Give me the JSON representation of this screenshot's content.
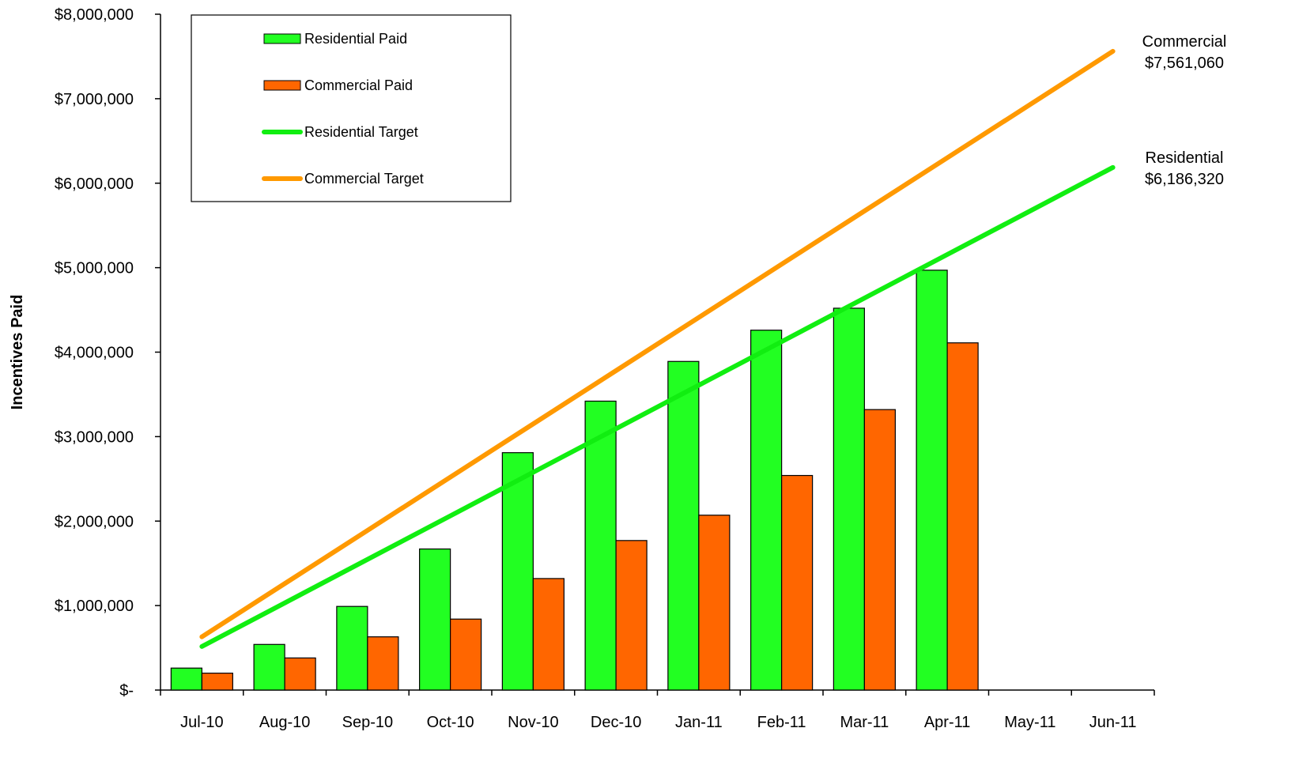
{
  "chart_data": {
    "type": "bar",
    "title": "",
    "xlabel": "",
    "ylabel": "Incentives Paid",
    "ylim": [
      0,
      8000000
    ],
    "yticks": [
      {
        "value": 0,
        "label": "$-"
      },
      {
        "value": 1000000,
        "label": "$1,000,000"
      },
      {
        "value": 2000000,
        "label": "$2,000,000"
      },
      {
        "value": 3000000,
        "label": "$3,000,000"
      },
      {
        "value": 4000000,
        "label": "$4,000,000"
      },
      {
        "value": 5000000,
        "label": "$5,000,000"
      },
      {
        "value": 6000000,
        "label": "$6,000,000"
      },
      {
        "value": 7000000,
        "label": "$7,000,000"
      },
      {
        "value": 8000000,
        "label": "$8,000,000"
      }
    ],
    "categories": [
      "Jul-10",
      "Aug-10",
      "Sep-10",
      "Oct-10",
      "Nov-10",
      "Dec-10",
      "Jan-11",
      "Feb-11",
      "Mar-11",
      "Apr-11",
      "May-11",
      "Jun-11"
    ],
    "grid": false,
    "legend_position": "top-left",
    "series": [
      {
        "name": "Residential Paid",
        "kind": "bar",
        "color": "#22ff22",
        "values": [
          260000,
          540000,
          990000,
          1670000,
          2810000,
          3420000,
          3890000,
          4260000,
          4520000,
          4970000,
          null,
          null
        ]
      },
      {
        "name": "Commercial Paid",
        "kind": "bar",
        "color": "#ff6600",
        "values": [
          200000,
          380000,
          630000,
          840000,
          1320000,
          1770000,
          2070000,
          2540000,
          3320000,
          4110000,
          null,
          null
        ]
      },
      {
        "name": "Residential Target",
        "kind": "line",
        "color": "#11ee11",
        "values": [
          515527,
          1031053,
          1546580,
          2062107,
          2577633,
          3093160,
          3608687,
          4124213,
          4639740,
          5155267,
          5670793,
          6186320
        ]
      },
      {
        "name": "Commercial Target",
        "kind": "line",
        "color": "#ff9900",
        "values": [
          630088,
          1260177,
          1890265,
          2520353,
          3150442,
          3780530,
          4410618,
          5040707,
          5670795,
          6300883,
          6930972,
          7561060
        ]
      }
    ],
    "annotations": [
      {
        "series": "Commercial Target",
        "lines": [
          "Commercial",
          "$7,561,060"
        ]
      },
      {
        "series": "Residential Target",
        "lines": [
          "Residential",
          "$6,186,320"
        ]
      }
    ]
  }
}
